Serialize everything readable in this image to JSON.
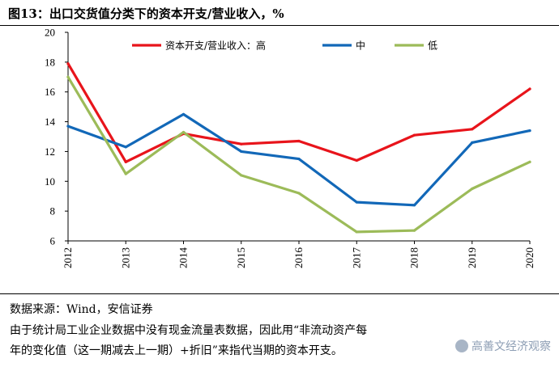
{
  "title": "图13：出口交货值分类下的资本开支/营业收入，%",
  "chart_data": {
    "type": "line",
    "title": "图13：出口交货值分类下的资本开支/营业收入，%",
    "categories": [
      "2012",
      "2013",
      "2014",
      "2015",
      "2016",
      "2017",
      "2018",
      "2019",
      "2020"
    ],
    "ylim": [
      6,
      20
    ],
    "yticks": [
      6,
      8,
      10,
      12,
      14,
      16,
      18,
      20
    ],
    "legend_position": "top",
    "series": [
      {
        "name": "资本开支/营业收入：高",
        "color": "#e8141b",
        "values": [
          17.9,
          11.3,
          13.2,
          12.5,
          12.7,
          11.4,
          13.1,
          13.5,
          16.2
        ]
      },
      {
        "name": "中",
        "color": "#1268b8",
        "values": [
          13.7,
          12.3,
          14.5,
          12.0,
          11.5,
          8.6,
          8.4,
          12.6,
          13.4
        ]
      },
      {
        "name": "低",
        "color": "#9cbb59",
        "values": [
          17.0,
          10.5,
          13.3,
          10.4,
          9.2,
          6.6,
          6.7,
          9.5,
          11.3
        ]
      }
    ]
  },
  "footer": {
    "source": "数据来源：Wind，安信证券",
    "note_line1": "由于统计局工业企业数据中没有现金流量表数据，因此用“非流动资产每",
    "note_line2": "年的变化值（这一期减去上一期）+折旧”来指代当期的资本开支。"
  },
  "watermark": "高善文经济观察"
}
